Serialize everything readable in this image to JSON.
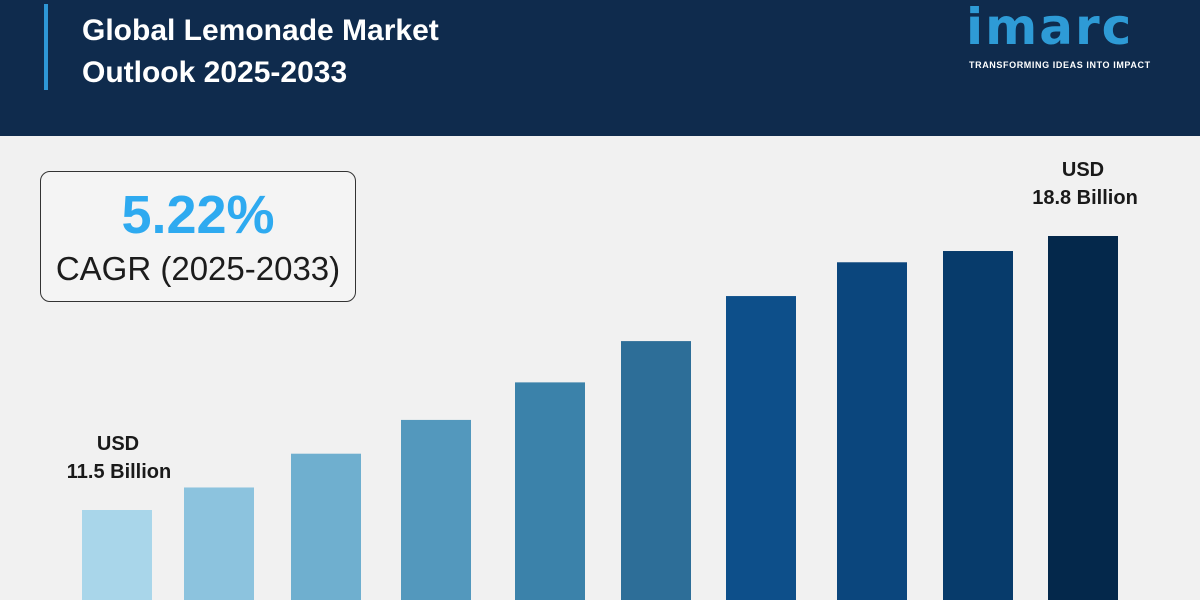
{
  "header": {
    "title_line1": "Global Lemonade Market",
    "title_line2": "Outlook 2025-2033"
  },
  "logo": {
    "text": "imarc",
    "tagline": "TRANSFORMING IDEAS INTO IMPACT"
  },
  "cagr": {
    "value": "5.22%",
    "label": "CAGR (2025-2033)"
  },
  "colors": {
    "header_bg": "#0f2b4d",
    "accent": "#2eaaf0",
    "bars": [
      "#a9d6ea",
      "#8cc3de",
      "#6fafcf",
      "#5398bd",
      "#3b82aa",
      "#2d6e98",
      "#0d4f8a",
      "#0b467d",
      "#073b6b",
      "#04284b"
    ]
  },
  "chart_data": {
    "type": "bar",
    "values": [
      11.5,
      12.1,
      13.0,
      13.9,
      14.9,
      16.0,
      17.2,
      18.1,
      18.4,
      18.8
    ],
    "annotations": [
      {
        "index": 0,
        "line1": "USD",
        "line2": "11.5 Billion"
      },
      {
        "index": 9,
        "line1": "USD",
        "line2": "18.8 Billion"
      }
    ]
  }
}
